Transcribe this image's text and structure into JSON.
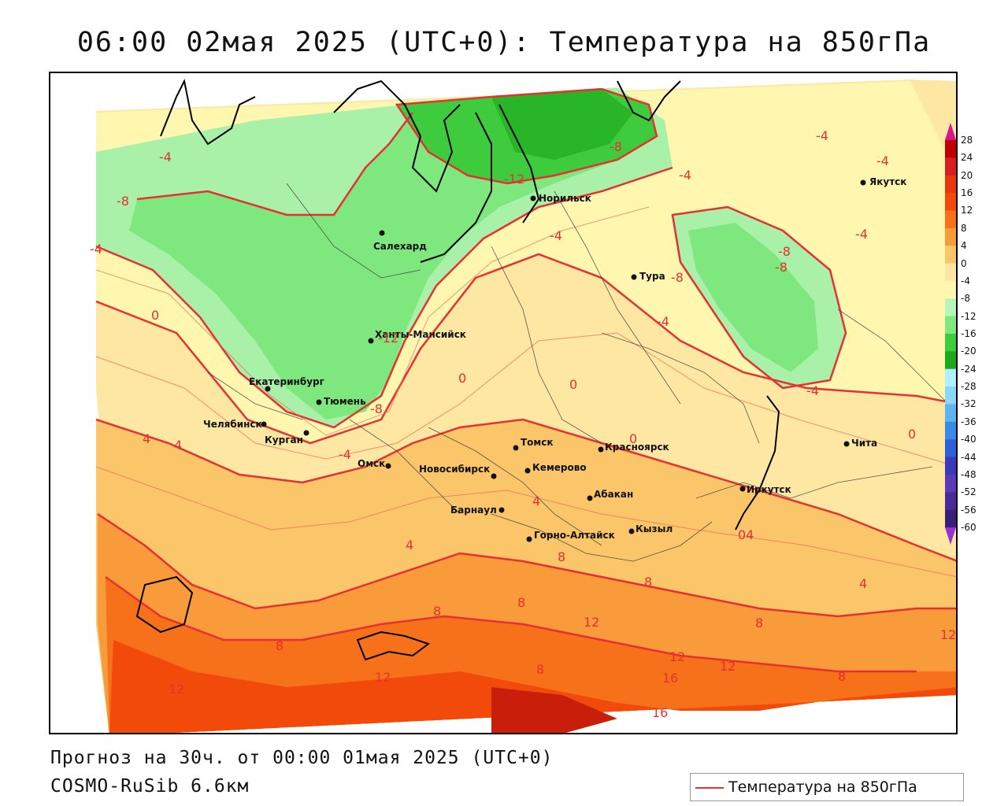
{
  "title": "06:00 02мая 2025 (UTC+0): Температура на 850гПа",
  "footer": {
    "forecast": "Прогноз на 30ч. от 00:00 01мая 2025 (UTC+0)",
    "model": "COSMO-RuSib 6.6км"
  },
  "legend": {
    "label": "Температура на 850гПа",
    "line_color": "#e53131"
  },
  "colorbar": {
    "ticks": [
      "28",
      "24",
      "20",
      "16",
      "12",
      "8",
      "4",
      "0",
      "-4",
      "-8",
      "-12",
      "-16",
      "-20",
      "-24",
      "-28",
      "-32",
      "-36",
      "-40",
      "-44",
      "-48",
      "-52",
      "-56",
      "-60"
    ],
    "colors": [
      "#c00000",
      "#d81e1e",
      "#e8360e",
      "#f24a0a",
      "#f7701a",
      "#f99a3b",
      "#fbc56a",
      "#fde7a3",
      "#fff7b0",
      "#b8f5b8",
      "#7ee87e",
      "#3ecb3e",
      "#1ea81e",
      "#b0f0ff",
      "#8ad8f6",
      "#5fb4ef",
      "#3a8ae8",
      "#2d5fd6",
      "#3a3ab8",
      "#5b3ab8",
      "#4a2a98",
      "#3a1f7a"
    ]
  },
  "cities": {
    "norilsk": "Норильск",
    "yakutsk": "Якутск",
    "salekhard": "Салехард",
    "tura": "Тура",
    "khanty": "Ханты-Мансийск",
    "ekaterinburg": "Екатеринбург",
    "tyumen": "Тюмень",
    "chelyabinsk": "Челябинск",
    "kurgan": "Курган",
    "omsk": "Омск",
    "novosibirsk": "Новосибирск",
    "tomsk": "Томск",
    "krasnoyarsk": "Красноярск",
    "kemerovo": "Кемерово",
    "abakan": "Абакан",
    "barnaul": "Барнаул",
    "gorno": "Горно-Алтайск",
    "kyzyl": "Кызыл",
    "irkutsk": "Иркутск",
    "chita": "Чита"
  },
  "isotherm_labels": {
    "l1": "-4",
    "l2": "-8",
    "l3": "-4",
    "l4": "-12",
    "l5": "-8",
    "l6": "-4",
    "l7": "-4",
    "l8": "-4",
    "l9": "-4",
    "l10": "-8",
    "l11": "-8",
    "l12": "-8",
    "l13": "-4",
    "l14": "-4",
    "l15": "0",
    "l16": "0",
    "l17": "0",
    "l18": "0",
    "l19": "0",
    "l20": "4",
    "l21": "4",
    "l22": "-4",
    "l23": "-8",
    "l24": "-12",
    "l25": "4",
    "l26": "4",
    "l27": "8",
    "l28": "8",
    "l29": "8",
    "l30": "8",
    "l31": "12",
    "l32": "12",
    "l33": "8",
    "l34": "8",
    "l35": "12",
    "l36": "16",
    "l37": "12",
    "l38": "12",
    "l39": "16",
    "l40": "8",
    "l41": "12",
    "l42": "8",
    "l43": "4",
    "l44": "-4",
    "l45": "04"
  }
}
